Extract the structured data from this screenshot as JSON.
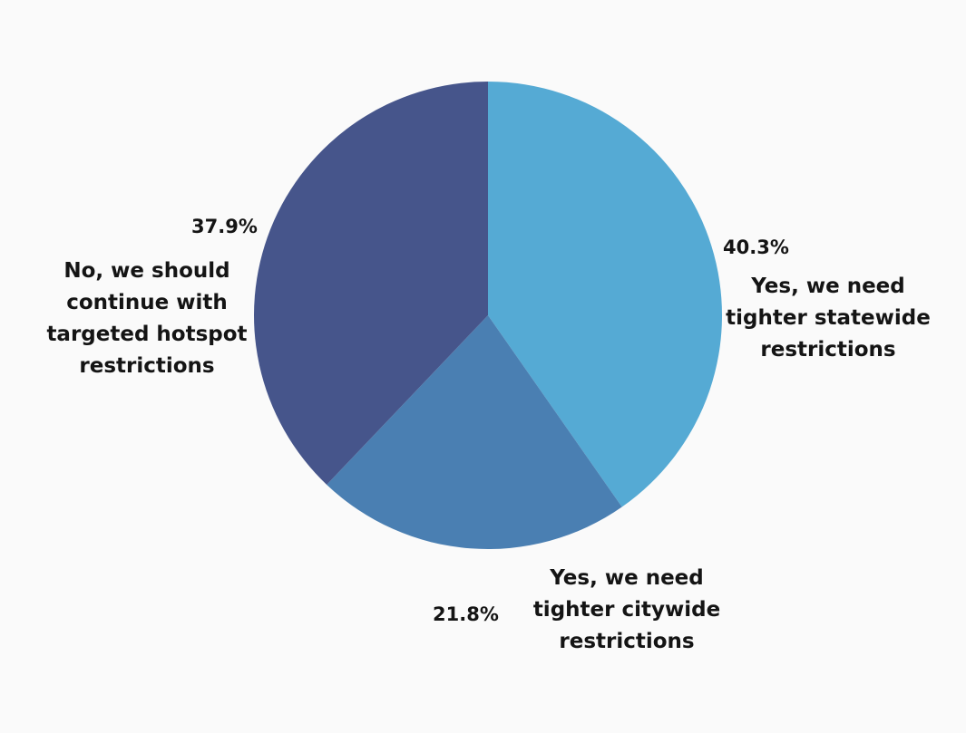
{
  "chart_data": {
    "type": "pie",
    "title": "",
    "slices": [
      {
        "label_lines": [
          "Yes, we need",
          "tighter statewide",
          "restrictions"
        ],
        "value": 40.3,
        "value_label": "40.3%",
        "color": "#55aad4"
      },
      {
        "label_lines": [
          "Yes, we need",
          "tighter citywide",
          "restrictions"
        ],
        "value": 21.8,
        "value_label": "21.8%",
        "color": "#4a7fb2"
      },
      {
        "label_lines": [
          "No, we should",
          "continue with",
          "targeted hotspot",
          "restrictions"
        ],
        "value": 37.9,
        "value_label": "37.9%",
        "color": "#46558b"
      }
    ],
    "start_angle": "12 o'clock",
    "direction": "clockwise",
    "legend": "none"
  }
}
